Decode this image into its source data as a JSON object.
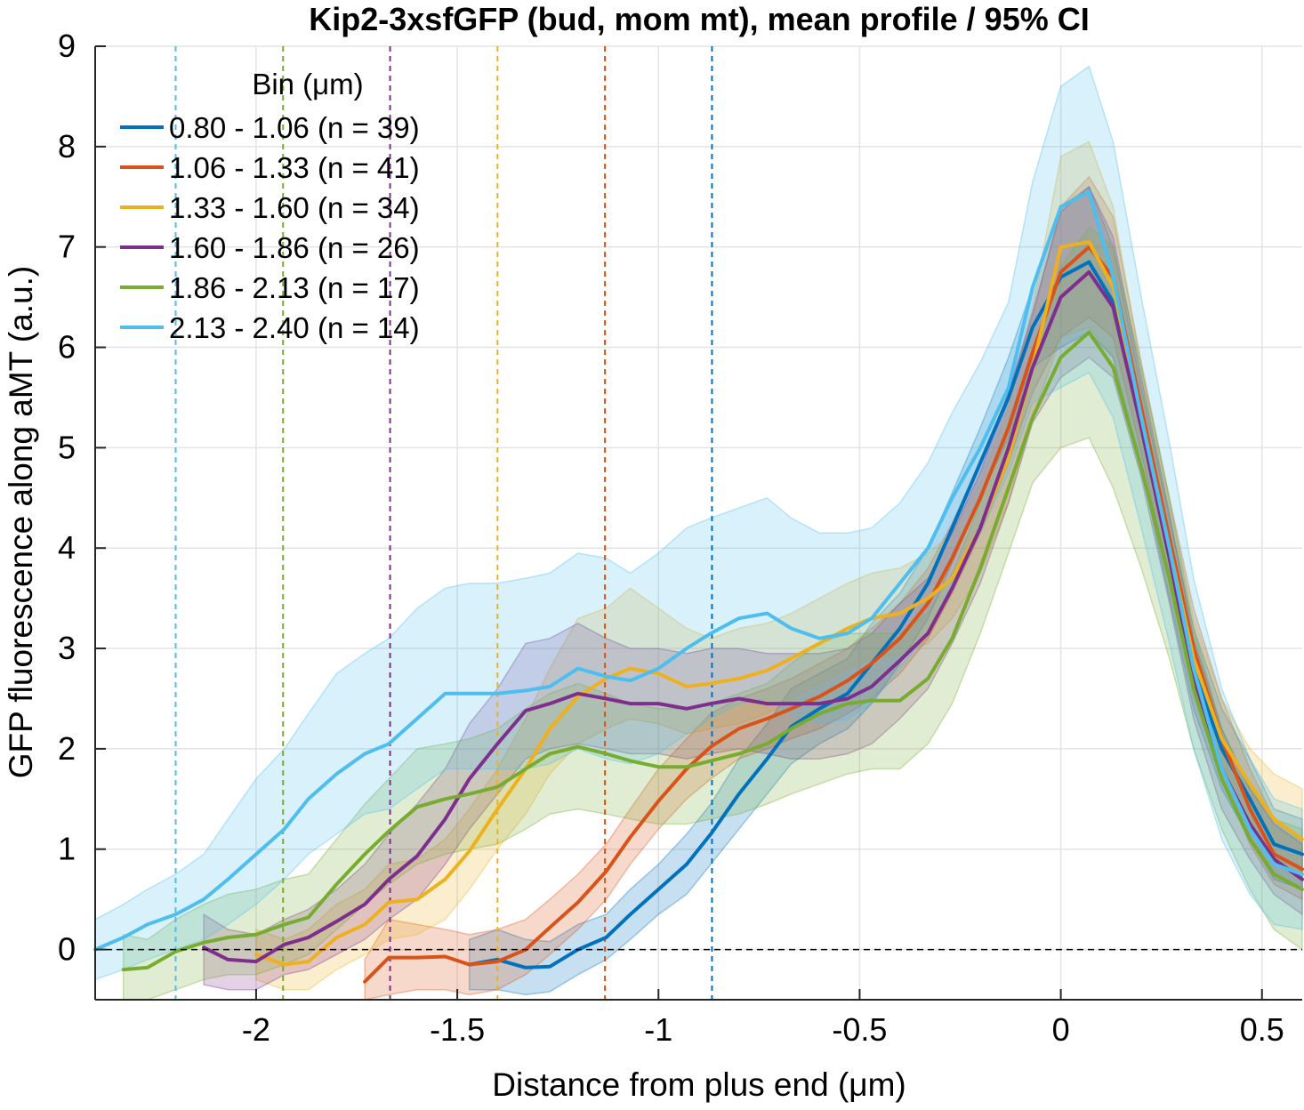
{
  "chart_data": {
    "type": "line",
    "title": "Kip2-3xsfGFP (bud, mom mt), mean profile / 95% CI",
    "xlabel": "Distance from plus end (μm)",
    "ylabel": "GFP fluorescence along aMT (a.u.)",
    "xlim": [
      -2.4,
      0.6
    ],
    "ylim": [
      -0.5,
      9
    ],
    "xticks": [
      -2,
      -1.5,
      -1,
      -0.5,
      0,
      0.5
    ],
    "xtick_labels": [
      "-2",
      "-1.5",
      "-1",
      "-0.5",
      "0",
      "0.5"
    ],
    "yticks": [
      0,
      1,
      2,
      3,
      4,
      5,
      6,
      7,
      8,
      9
    ],
    "ytick_labels": [
      "0",
      "1",
      "2",
      "3",
      "4",
      "5",
      "6",
      "7",
      "8",
      "9"
    ],
    "grid": true,
    "zero_line": true,
    "legend": {
      "title": "Bin (μm)",
      "placement": "top-left"
    },
    "series": [
      {
        "name": "0.80 - 1.06 (n =  39)",
        "color": "#0072BD",
        "cutoff": -0.867,
        "x": [
          -1.47,
          -1.4,
          -1.33,
          -1.27,
          -1.2,
          -1.13,
          -1.07,
          -1.0,
          -0.93,
          -0.87,
          -0.8,
          -0.73,
          -0.67,
          -0.6,
          -0.53,
          -0.47,
          -0.4,
          -0.33,
          -0.27,
          -0.2,
          -0.13,
          -0.07,
          0.0,
          0.07,
          0.13,
          0.2,
          0.27,
          0.33,
          0.4,
          0.47,
          0.53,
          0.6
        ],
        "y": [
          -0.15,
          -0.1,
          -0.18,
          -0.17,
          0.0,
          0.12,
          0.35,
          0.6,
          0.85,
          1.15,
          1.55,
          1.9,
          2.22,
          2.4,
          2.55,
          2.85,
          3.2,
          3.65,
          4.2,
          4.85,
          5.5,
          6.2,
          6.7,
          6.85,
          6.45,
          5.2,
          3.9,
          2.8,
          2.0,
          1.5,
          1.05,
          0.95
        ],
        "lo": [
          -0.4,
          -0.4,
          -0.45,
          -0.42,
          -0.25,
          -0.1,
          0.1,
          0.35,
          0.55,
          0.85,
          1.2,
          1.55,
          1.85,
          2.05,
          2.2,
          2.45,
          2.85,
          3.3,
          3.85,
          4.5,
          5.1,
          5.8,
          6.0,
          6.15,
          5.9,
          4.8,
          3.5,
          2.4,
          1.6,
          1.1,
          0.7,
          0.6
        ],
        "hi": [
          0.1,
          0.2,
          0.1,
          0.08,
          0.25,
          0.35,
          0.6,
          0.85,
          1.15,
          1.45,
          1.9,
          2.25,
          2.6,
          2.75,
          2.9,
          3.25,
          3.55,
          4.0,
          4.55,
          5.2,
          5.9,
          6.6,
          7.4,
          7.6,
          7.0,
          5.6,
          4.3,
          3.2,
          2.4,
          1.9,
          1.4,
          1.3
        ]
      },
      {
        "name": "1.06 - 1.33 (n =  41)",
        "color": "#D95319",
        "cutoff": -1.133,
        "x": [
          -1.73,
          -1.67,
          -1.6,
          -1.53,
          -1.47,
          -1.4,
          -1.33,
          -1.27,
          -1.2,
          -1.13,
          -1.07,
          -1.0,
          -0.93,
          -0.87,
          -0.8,
          -0.73,
          -0.67,
          -0.6,
          -0.53,
          -0.47,
          -0.4,
          -0.33,
          -0.27,
          -0.2,
          -0.13,
          -0.07,
          0.0,
          0.07,
          0.13,
          0.2,
          0.27,
          0.33,
          0.4,
          0.47,
          0.53,
          0.6
        ],
        "y": [
          -0.32,
          -0.08,
          -0.08,
          -0.07,
          -0.15,
          -0.12,
          0.0,
          0.22,
          0.47,
          0.78,
          1.12,
          1.48,
          1.8,
          2.02,
          2.2,
          2.3,
          2.4,
          2.52,
          2.68,
          2.85,
          3.1,
          3.45,
          3.9,
          4.5,
          5.2,
          5.95,
          6.75,
          7.0,
          6.7,
          5.4,
          4.1,
          3.0,
          2.1,
          1.4,
          0.95,
          0.8
        ],
        "lo": [
          -0.5,
          -0.45,
          -0.4,
          -0.4,
          -0.45,
          -0.4,
          -0.25,
          -0.05,
          0.2,
          0.5,
          0.85,
          1.2,
          1.5,
          1.7,
          1.9,
          2.0,
          2.1,
          2.2,
          2.35,
          2.5,
          2.75,
          3.1,
          3.55,
          4.15,
          4.85,
          5.55,
          6.1,
          6.3,
          6.1,
          4.95,
          3.7,
          2.6,
          1.7,
          1.05,
          0.65,
          0.5
        ],
        "hi": [
          -0.1,
          0.3,
          0.25,
          0.2,
          0.15,
          0.2,
          0.3,
          0.5,
          0.75,
          1.05,
          1.4,
          1.8,
          2.1,
          2.35,
          2.5,
          2.6,
          2.7,
          2.85,
          3.0,
          3.2,
          3.45,
          3.8,
          4.25,
          4.85,
          5.55,
          6.3,
          7.4,
          7.7,
          7.3,
          5.85,
          4.5,
          3.4,
          2.5,
          1.8,
          1.3,
          1.1
        ]
      },
      {
        "name": "1.33 - 1.60 (n =  34)",
        "color": "#EDB120",
        "cutoff": -1.4,
        "x": [
          -2.0,
          -1.93,
          -1.87,
          -1.8,
          -1.73,
          -1.67,
          -1.6,
          -1.53,
          -1.47,
          -1.4,
          -1.33,
          -1.27,
          -1.2,
          -1.13,
          -1.07,
          -1.0,
          -0.93,
          -0.87,
          -0.8,
          -0.73,
          -0.67,
          -0.6,
          -0.53,
          -0.47,
          -0.4,
          -0.33,
          -0.27,
          -0.2,
          -0.13,
          -0.07,
          0.0,
          0.07,
          0.13,
          0.2,
          0.27,
          0.33,
          0.4,
          0.47,
          0.53,
          0.6
        ],
        "y": [
          -0.05,
          -0.15,
          -0.12,
          0.12,
          0.25,
          0.47,
          0.5,
          0.7,
          0.98,
          1.4,
          1.8,
          2.2,
          2.52,
          2.7,
          2.8,
          2.75,
          2.62,
          2.65,
          2.7,
          2.78,
          2.9,
          3.05,
          3.2,
          3.3,
          3.35,
          3.5,
          3.7,
          4.2,
          4.9,
          5.8,
          7.0,
          7.05,
          6.6,
          5.3,
          4.0,
          2.9,
          2.1,
          1.65,
          1.3,
          1.1
        ],
        "lo": [
          -0.3,
          -0.4,
          -0.4,
          -0.2,
          -0.05,
          0.1,
          0.15,
          0.3,
          0.6,
          1.0,
          1.35,
          1.75,
          2.05,
          2.2,
          2.3,
          2.25,
          2.15,
          2.2,
          2.25,
          2.35,
          2.5,
          2.65,
          2.8,
          2.9,
          2.95,
          3.05,
          3.3,
          3.75,
          4.45,
          5.3,
          6.1,
          6.2,
          5.9,
          4.8,
          3.55,
          2.5,
          1.7,
          1.25,
          0.9,
          0.75
        ],
        "hi": [
          0.2,
          0.1,
          0.2,
          0.45,
          0.6,
          0.85,
          0.9,
          1.1,
          1.4,
          1.8,
          2.3,
          2.8,
          3.3,
          3.4,
          3.6,
          3.4,
          3.2,
          3.1,
          3.2,
          3.25,
          3.35,
          3.5,
          3.65,
          3.75,
          3.8,
          3.95,
          4.15,
          4.65,
          5.4,
          6.4,
          7.9,
          8.05,
          7.4,
          5.8,
          4.45,
          3.3,
          2.5,
          2.0,
          1.75,
          1.6
        ]
      },
      {
        "name": "1.60 - 1.86 (n =  26)",
        "color": "#7E2F8E",
        "cutoff": -1.667,
        "x": [
          -2.13,
          -2.07,
          -2.0,
          -1.93,
          -1.87,
          -1.8,
          -1.73,
          -1.67,
          -1.6,
          -1.53,
          -1.47,
          -1.4,
          -1.33,
          -1.27,
          -1.2,
          -1.13,
          -1.07,
          -1.0,
          -0.93,
          -0.87,
          -0.8,
          -0.73,
          -0.67,
          -0.6,
          -0.53,
          -0.47,
          -0.4,
          -0.33,
          -0.27,
          -0.2,
          -0.13,
          -0.07,
          0.0,
          0.07,
          0.13,
          0.2,
          0.27,
          0.33,
          0.4,
          0.47,
          0.53,
          0.6
        ],
        "y": [
          0.02,
          -0.1,
          -0.12,
          0.05,
          0.12,
          0.28,
          0.45,
          0.7,
          0.93,
          1.3,
          1.7,
          2.05,
          2.38,
          2.45,
          2.55,
          2.5,
          2.45,
          2.45,
          2.4,
          2.45,
          2.5,
          2.45,
          2.45,
          2.45,
          2.5,
          2.62,
          2.88,
          3.15,
          3.6,
          4.2,
          5.0,
          5.8,
          6.5,
          6.75,
          6.4,
          5.2,
          3.9,
          2.7,
          1.8,
          1.25,
          0.9,
          0.7
        ],
        "lo": [
          -0.35,
          -0.4,
          -0.4,
          -0.25,
          -0.2,
          -0.05,
          0.1,
          0.3,
          0.5,
          0.85,
          1.2,
          1.55,
          1.9,
          2.0,
          2.05,
          2.0,
          1.95,
          1.95,
          1.9,
          1.95,
          2.0,
          1.95,
          1.9,
          1.9,
          1.95,
          2.05,
          2.3,
          2.6,
          3.05,
          3.65,
          4.45,
          5.25,
          5.7,
          5.9,
          5.7,
          4.7,
          3.45,
          2.3,
          1.4,
          0.9,
          0.55,
          0.35
        ],
        "hi": [
          0.35,
          0.2,
          0.15,
          0.3,
          0.4,
          0.6,
          0.85,
          1.15,
          1.45,
          1.8,
          2.25,
          2.6,
          3.05,
          3.1,
          3.25,
          3.1,
          3.0,
          3.0,
          2.95,
          3.0,
          3.0,
          2.95,
          2.95,
          2.95,
          3.0,
          3.15,
          3.45,
          3.7,
          4.15,
          4.75,
          5.55,
          6.35,
          7.35,
          7.6,
          7.1,
          5.7,
          4.35,
          3.1,
          2.2,
          1.6,
          1.25,
          1.05
        ]
      },
      {
        "name": "1.86 - 2.13 (n =  17)",
        "color": "#77AC30",
        "cutoff": -1.933,
        "x": [
          -2.33,
          -2.27,
          -2.2,
          -2.13,
          -2.07,
          -2.0,
          -1.93,
          -1.87,
          -1.8,
          -1.73,
          -1.67,
          -1.6,
          -1.53,
          -1.47,
          -1.4,
          -1.33,
          -1.27,
          -1.2,
          -1.13,
          -1.07,
          -1.0,
          -0.93,
          -0.87,
          -0.8,
          -0.73,
          -0.67,
          -0.6,
          -0.53,
          -0.47,
          -0.4,
          -0.33,
          -0.27,
          -0.2,
          -0.13,
          -0.07,
          0.0,
          0.07,
          0.13,
          0.2,
          0.27,
          0.33,
          0.4,
          0.47,
          0.53,
          0.6
        ],
        "y": [
          -0.2,
          -0.18,
          -0.02,
          0.07,
          0.12,
          0.15,
          0.25,
          0.32,
          0.65,
          0.95,
          1.18,
          1.42,
          1.5,
          1.55,
          1.62,
          1.8,
          1.95,
          2.02,
          1.95,
          1.88,
          1.82,
          1.82,
          1.88,
          1.95,
          2.05,
          2.2,
          2.35,
          2.45,
          2.48,
          2.48,
          2.7,
          3.1,
          3.8,
          4.6,
          5.3,
          5.9,
          6.15,
          5.8,
          4.8,
          3.7,
          2.6,
          1.7,
          1.1,
          0.75,
          0.6
        ],
        "lo": [
          -0.5,
          -0.5,
          -0.4,
          -0.3,
          -0.25,
          -0.25,
          -0.15,
          -0.05,
          0.2,
          0.45,
          0.65,
          0.85,
          0.95,
          1.0,
          1.05,
          1.2,
          1.35,
          1.4,
          1.35,
          1.3,
          1.25,
          1.25,
          1.3,
          1.35,
          1.45,
          1.55,
          1.65,
          1.75,
          1.8,
          1.8,
          2.05,
          2.45,
          3.15,
          3.95,
          4.65,
          5.0,
          5.1,
          4.6,
          3.8,
          2.9,
          2.0,
          1.2,
          0.6,
          0.2,
          0.0
        ],
        "hi": [
          0.15,
          0.1,
          0.3,
          0.45,
          0.55,
          0.6,
          0.7,
          0.75,
          1.1,
          1.45,
          1.7,
          2.0,
          2.05,
          2.1,
          2.2,
          2.4,
          2.55,
          2.65,
          2.55,
          2.45,
          2.4,
          2.4,
          2.45,
          2.55,
          2.65,
          2.85,
          3.05,
          3.15,
          3.15,
          3.15,
          3.35,
          3.75,
          4.45,
          5.25,
          5.95,
          6.8,
          7.2,
          7.0,
          5.8,
          4.5,
          3.2,
          2.2,
          1.6,
          1.3,
          1.2
        ]
      },
      {
        "name": "2.13 - 2.40 (n =  14)",
        "color": "#4DBEEE",
        "cutoff": -2.2,
        "x": [
          -2.4,
          -2.33,
          -2.27,
          -2.2,
          -2.13,
          -2.07,
          -2.0,
          -1.93,
          -1.87,
          -1.8,
          -1.73,
          -1.67,
          -1.6,
          -1.53,
          -1.47,
          -1.4,
          -1.33,
          -1.27,
          -1.2,
          -1.13,
          -1.07,
          -1.0,
          -0.93,
          -0.87,
          -0.8,
          -0.73,
          -0.67,
          -0.6,
          -0.53,
          -0.47,
          -0.4,
          -0.33,
          -0.27,
          -0.2,
          -0.13,
          -0.07,
          0.0,
          0.07,
          0.13,
          0.2,
          0.27,
          0.33,
          0.4,
          0.47,
          0.53,
          0.6
        ],
        "y": [
          0.0,
          0.12,
          0.25,
          0.35,
          0.5,
          0.7,
          0.95,
          1.2,
          1.5,
          1.75,
          1.95,
          2.05,
          2.3,
          2.55,
          2.55,
          2.55,
          2.58,
          2.62,
          2.8,
          2.72,
          2.68,
          2.8,
          3.0,
          3.15,
          3.3,
          3.35,
          3.2,
          3.1,
          3.15,
          3.3,
          3.65,
          4.0,
          4.5,
          5.0,
          5.6,
          6.6,
          7.4,
          7.55,
          6.7,
          5.3,
          4.0,
          2.8,
          1.8,
          1.2,
          0.85,
          0.75
        ],
        "lo": [
          -0.3,
          -0.2,
          -0.1,
          0.0,
          0.1,
          0.25,
          0.45,
          0.7,
          0.95,
          1.15,
          1.35,
          1.4,
          1.6,
          1.8,
          1.8,
          1.8,
          1.8,
          1.85,
          2.0,
          1.9,
          1.85,
          1.95,
          2.15,
          2.3,
          2.45,
          2.5,
          2.35,
          2.25,
          2.3,
          2.45,
          2.8,
          3.15,
          3.65,
          4.15,
          4.75,
          5.45,
          5.6,
          5.75,
          5.3,
          4.2,
          3.05,
          2.0,
          1.1,
          0.55,
          0.25,
          0.2
        ],
        "hi": [
          0.3,
          0.45,
          0.6,
          0.75,
          0.95,
          1.3,
          1.7,
          2.0,
          2.35,
          2.75,
          2.95,
          3.1,
          3.4,
          3.6,
          3.65,
          3.65,
          3.7,
          3.75,
          3.95,
          3.9,
          3.75,
          3.95,
          4.2,
          4.3,
          4.4,
          4.5,
          4.3,
          4.15,
          4.15,
          4.2,
          4.45,
          4.85,
          5.35,
          5.85,
          6.45,
          7.65,
          8.6,
          8.8,
          8.05,
          6.5,
          5.05,
          3.7,
          2.6,
          1.9,
          1.5,
          1.4
        ]
      }
    ]
  }
}
